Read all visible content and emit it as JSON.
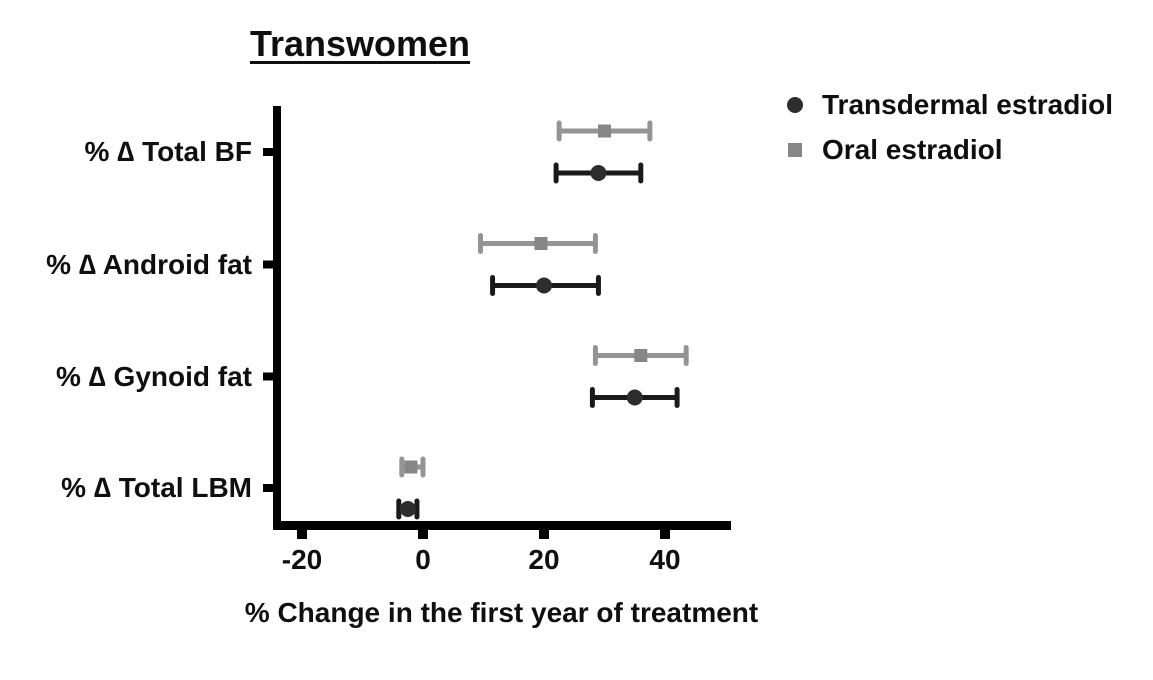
{
  "page": {
    "background": "#ffffff",
    "text_color": "#0f0f0f"
  },
  "title": "Transwomen",
  "xlabel": "% Change in the first year of treatment",
  "legend": {
    "position": "top-right",
    "items": [
      {
        "label": "Transdermal estradiol",
        "marker": "circle",
        "color": "#2d2d2d"
      },
      {
        "label": "Oral estradiol",
        "marker": "square",
        "color": "#868686"
      }
    ]
  },
  "axis": {
    "color": "#000000"
  },
  "chart_data": {
    "type": "scatter",
    "variant": "horizontal-dot-plot-with-error-bars",
    "title": "Transwomen",
    "xlabel": "% Change in the first year of treatment",
    "categories": [
      "% ∆ Total BF",
      "% ∆ Android fat",
      "% ∆ Gynoid fat",
      "% ∆ Total LBM"
    ],
    "x_ticks": [
      -20,
      0,
      20,
      40
    ],
    "xlim": [
      -25,
      51
    ],
    "grid": false,
    "legend_position": "top-right",
    "row_order_note": "within each category the Oral estradiol (square) row is drawn above the Transdermal estradiol (circle) row",
    "series": [
      {
        "name": "Oral estradiol",
        "marker": "square",
        "marker_color": "#868686",
        "line_color": "#949494",
        "points": [
          {
            "category": "% ∆ Total BF",
            "mean": 30,
            "lo": 22.5,
            "hi": 37.5
          },
          {
            "category": "% ∆ Android fat",
            "mean": 19.5,
            "lo": 9.5,
            "hi": 28.5
          },
          {
            "category": "% ∆ Gynoid fat",
            "mean": 36,
            "lo": 28.5,
            "hi": 43.5
          },
          {
            "category": "% ∆ Total LBM",
            "mean": -2,
            "lo": -3.5,
            "hi": 0
          }
        ]
      },
      {
        "name": "Transdermal estradiol",
        "marker": "circle",
        "marker_color": "#2d2d2d",
        "line_color": "#1a1a1a",
        "points": [
          {
            "category": "% ∆ Total BF",
            "mean": 29,
            "lo": 22,
            "hi": 36
          },
          {
            "category": "% ∆ Android fat",
            "mean": 20,
            "lo": 11.5,
            "hi": 29
          },
          {
            "category": "% ∆ Gynoid fat",
            "mean": 35,
            "lo": 28,
            "hi": 42
          },
          {
            "category": "% ∆ Total LBM",
            "mean": -2.5,
            "lo": -4,
            "hi": -1
          }
        ]
      }
    ]
  }
}
